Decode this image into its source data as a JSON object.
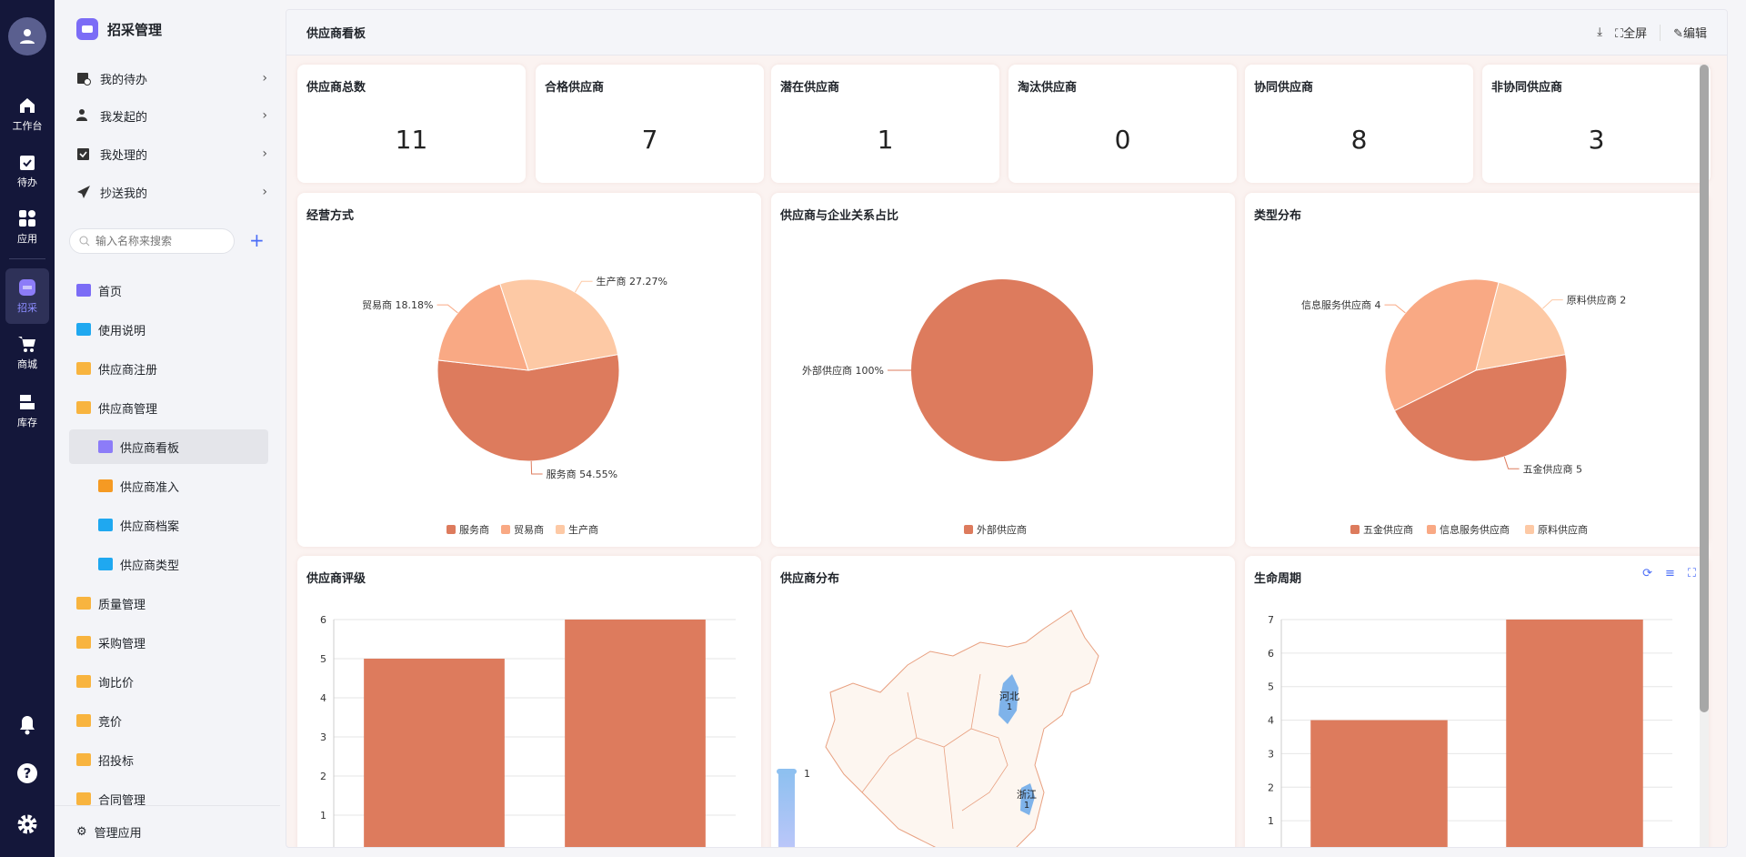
{
  "rail": {
    "items": [
      {
        "label": "工作台",
        "icon": "home-icon"
      },
      {
        "label": "待办",
        "icon": "clipboard-check-icon"
      },
      {
        "label": "应用",
        "icon": "apps-icon"
      },
      {
        "label": "招采",
        "icon": "srm-icon",
        "selected": true
      },
      {
        "label": "商城",
        "icon": "cart-icon"
      },
      {
        "label": "库存",
        "icon": "inventory-icon"
      }
    ],
    "bottom": [
      "bell-icon",
      "help-icon",
      "gear-icon"
    ]
  },
  "sidebar": {
    "title": "招采管理",
    "quick": [
      "我的待办",
      "我发起的",
      "我处理的",
      "抄送我的"
    ],
    "search_placeholder": "输入名称来搜索",
    "nav": [
      {
        "label": "首页",
        "icon": "home-icon"
      },
      {
        "label": "使用说明",
        "icon": "doc-icon"
      },
      {
        "label": "供应商注册",
        "icon": "folder-icon"
      },
      {
        "label": "供应商管理",
        "icon": "folder-open-icon"
      },
      {
        "label": "供应商看板",
        "icon": "chart-icon",
        "sub": true,
        "selected": true
      },
      {
        "label": "供应商准入",
        "icon": "grid-icon",
        "sub": true
      },
      {
        "label": "供应商档案",
        "icon": "doc-icon",
        "sub": true
      },
      {
        "label": "供应商类型",
        "icon": "doc-icon",
        "sub": true
      },
      {
        "label": "质量管理",
        "icon": "folder-icon"
      },
      {
        "label": "采购管理",
        "icon": "folder-icon"
      },
      {
        "label": "询比价",
        "icon": "folder-icon"
      },
      {
        "label": "竞价",
        "icon": "folder-icon"
      },
      {
        "label": "招投标",
        "icon": "folder-icon"
      },
      {
        "label": "合同管理",
        "icon": "folder-icon"
      }
    ],
    "manage": "管理应用"
  },
  "header": {
    "title": "供应商看板",
    "fullscreen": "全屏",
    "edit": "编辑"
  },
  "stats": [
    {
      "label": "供应商总数",
      "value": "11"
    },
    {
      "label": "合格供应商",
      "value": "7"
    },
    {
      "label": "潜在供应商",
      "value": "1"
    },
    {
      "label": "淘汰供应商",
      "value": "0"
    },
    {
      "label": "协同供应商",
      "value": "8"
    },
    {
      "label": "非协同供应商",
      "value": "3"
    }
  ],
  "colors": {
    "c1": "#dd7b5d",
    "c2": "#f9a984",
    "c3": "#fdc9a5",
    "map_highlight": "#7fb3ea",
    "accent": "#4a6cf7"
  },
  "chart_data": [
    {
      "type": "pie",
      "title": "经营方式",
      "labels": [
        "服务商",
        "贸易商",
        "生产商"
      ],
      "values": [
        6,
        2,
        3
      ],
      "slice_labels": [
        "服务商 54.55%",
        "贸易商 18.18%",
        "生产商 27.27%"
      ],
      "legend": "bottom"
    },
    {
      "type": "pie",
      "title": "供应商与企业关系占比",
      "labels": [
        "外部供应商"
      ],
      "values": [
        1
      ],
      "slice_labels": [
        "外部供应商 100%"
      ],
      "legend": "bottom"
    },
    {
      "type": "pie",
      "title": "类型分布",
      "labels": [
        "五金供应商",
        "信息服务供应商",
        "原料供应商"
      ],
      "values": [
        5,
        4,
        2
      ],
      "slice_labels": [
        "五金供应商 5",
        "信息服务供应商 4",
        "原料供应商 2"
      ],
      "legend": "bottom"
    },
    {
      "type": "bar",
      "title": "供应商评级",
      "values": [
        5,
        6
      ],
      "ylim": [
        0,
        6
      ],
      "yticks": [
        "0",
        "1",
        "2",
        "3",
        "4",
        "5",
        "6"
      ],
      "grid": true
    },
    {
      "type": "map",
      "title": "供应商分布",
      "regions": [
        {
          "name": "河北",
          "value": "1"
        },
        {
          "name": "浙江",
          "value": "1"
        }
      ],
      "visualmap_max": "1"
    },
    {
      "type": "bar",
      "title": "生命周期",
      "values": [
        4,
        7
      ],
      "ylim": [
        0,
        7
      ],
      "yticks": [
        "0",
        "1",
        "2",
        "3",
        "4",
        "5",
        "6",
        "7"
      ],
      "grid": true
    }
  ]
}
